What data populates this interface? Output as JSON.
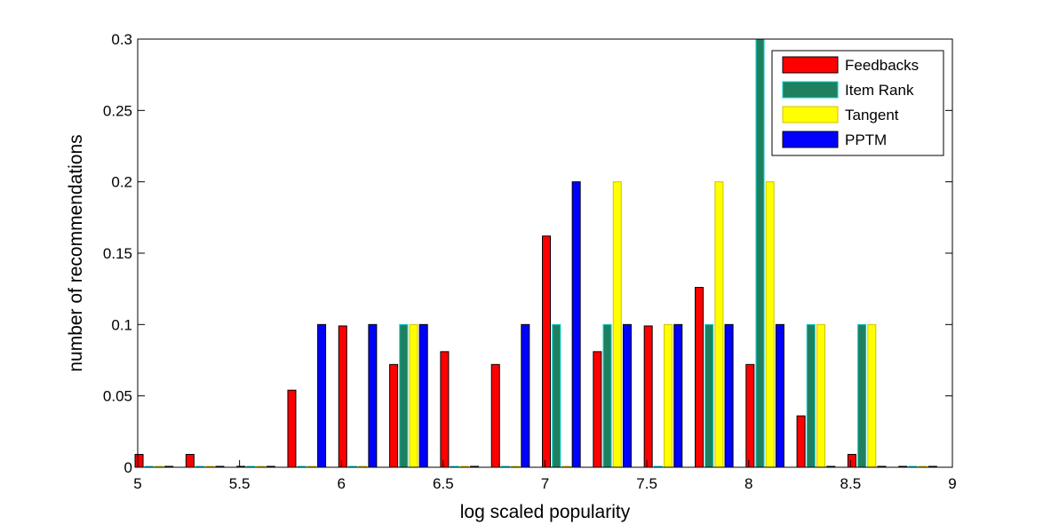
{
  "chart_data": {
    "type": "bar",
    "xlabel": "log scaled popularity",
    "ylabel": "number of recommendations",
    "xlim": [
      5,
      9
    ],
    "ylim": [
      0,
      0.3
    ],
    "xticks": [
      "5",
      "5.5",
      "6",
      "6.5",
      "7",
      "7.5",
      "8",
      "8.5",
      "9"
    ],
    "yticks": [
      "0",
      "0.05",
      "0.1",
      "0.15",
      "0.2",
      "0.25",
      "0.3"
    ],
    "grid": false,
    "legend_position": "top-right",
    "bin_centers": [
      5.08,
      5.33,
      5.58,
      5.83,
      6.08,
      6.33,
      6.58,
      6.83,
      7.08,
      7.33,
      7.58,
      7.83,
      8.08,
      8.33,
      8.58,
      8.83
    ],
    "series": [
      {
        "name": "Feedbacks",
        "color": "#ff0000",
        "edge": "#000000",
        "values": [
          0.009,
          0.009,
          0,
          0.054,
          0.099,
          0.072,
          0.081,
          0.072,
          0.162,
          0.081,
          0.099,
          0.126,
          0.072,
          0.036,
          0.009,
          0
        ]
      },
      {
        "name": "Item Rank",
        "color": "#1f8060",
        "edge": "#00d0d0",
        "values": [
          0,
          0,
          0,
          0,
          0,
          0.1,
          0,
          0,
          0.1,
          0.1,
          0,
          0.1,
          0.3,
          0.1,
          0.1,
          0
        ]
      },
      {
        "name": "Tangent",
        "color": "#ffff00",
        "edge": "#d0c000",
        "values": [
          0,
          0,
          0,
          0,
          0,
          0.1,
          0,
          0,
          0,
          0.2,
          0.1,
          0.2,
          0.2,
          0.1,
          0.1,
          0
        ]
      },
      {
        "name": "PPTM",
        "color": "#0000ff",
        "edge": "#000000",
        "values": [
          0,
          0,
          0,
          0.1,
          0.1,
          0.1,
          0,
          0.1,
          0.2,
          0.1,
          0.1,
          0.1,
          0.1,
          0,
          0,
          0
        ]
      }
    ]
  }
}
